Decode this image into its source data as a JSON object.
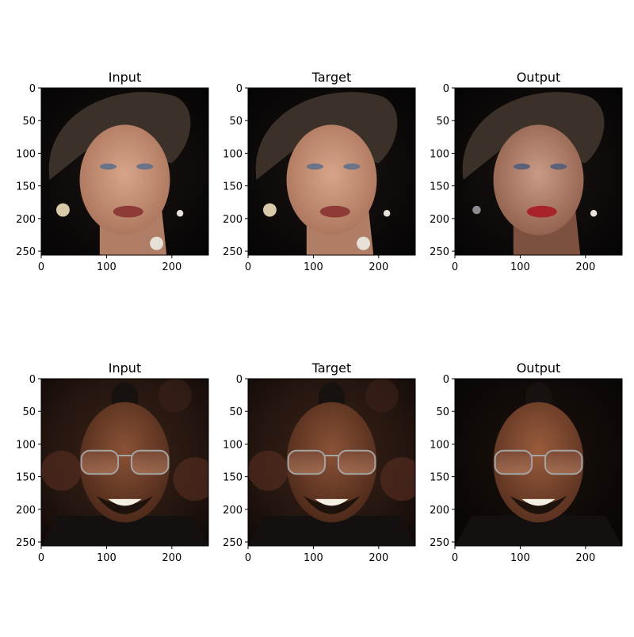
{
  "figure": {
    "rows": [
      {
        "panels": [
          {
            "title": "Input",
            "subject": "portrait-woman",
            "variant": "original"
          },
          {
            "title": "Target",
            "subject": "portrait-woman",
            "variant": "original"
          },
          {
            "title": "Output",
            "subject": "portrait-woman",
            "variant": "generated"
          }
        ]
      },
      {
        "panels": [
          {
            "title": "Input",
            "subject": "portrait-man-sunglasses",
            "variant": "original"
          },
          {
            "title": "Target",
            "subject": "portrait-man-sunglasses",
            "variant": "original"
          },
          {
            "title": "Output",
            "subject": "portrait-man-sunglasses",
            "variant": "generated"
          }
        ]
      }
    ],
    "axes": {
      "x_ticks": [
        "0",
        "100",
        "200"
      ],
      "y_ticks": [
        "0",
        "50",
        "100",
        "150",
        "200",
        "250"
      ],
      "x_tick_values": [
        0,
        100,
        200
      ],
      "y_tick_values": [
        0,
        50,
        100,
        150,
        200,
        250
      ],
      "image_extent": [
        0,
        256
      ]
    }
  }
}
